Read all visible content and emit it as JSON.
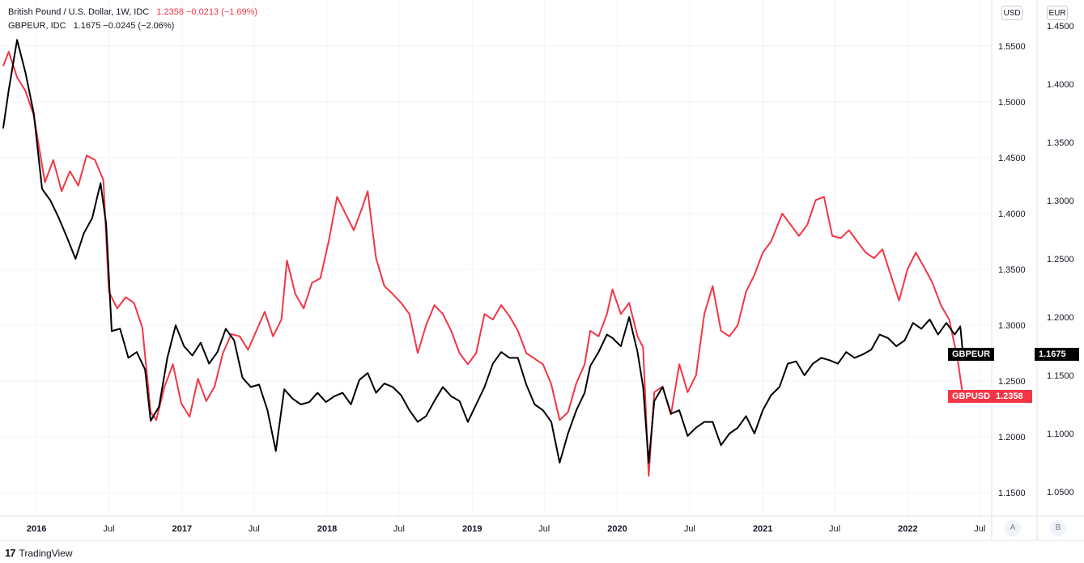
{
  "legend": {
    "line1_name": "British Pound / U.S. Dollar, 1W, IDC",
    "line1_values": "1.2358  −0.0213 (−1.69%)",
    "line2_name": "GBPEUR, IDC",
    "line2_values": "1.1675  −0.0245 (−2.06%)"
  },
  "axes": {
    "left_unit": "USD",
    "right_unit": "EUR",
    "scale_auto": "A",
    "scale_log": "B"
  },
  "footer": {
    "brand": "TradingView",
    "logo_glyph": "17"
  },
  "tags": {
    "gbpeur_label": "GBPEUR",
    "gbpeur_value": "1.1675",
    "gbpusd_label": "GBPUSD",
    "gbpusd_value": "1.2358"
  },
  "colors": {
    "gbpusd": "#f23645",
    "gbpeur": "#000000",
    "grid": "#f0f3fa"
  },
  "chart_data": {
    "type": "line",
    "x_tick_labels": [
      "2016",
      "Jul",
      "2017",
      "Jul",
      "2018",
      "Jul",
      "2019",
      "Jul",
      "2020",
      "Jul",
      "2021",
      "Jul",
      "2022",
      "Jul"
    ],
    "x_tick_dates": [
      "2016-01-01",
      "2016-07-01",
      "2017-01-01",
      "2017-07-01",
      "2018-01-01",
      "2018-07-01",
      "2019-01-01",
      "2019-07-01",
      "2020-01-01",
      "2020-07-01",
      "2021-01-01",
      "2021-07-01",
      "2022-01-01",
      "2022-07-01"
    ],
    "usd_axis": {
      "ticks": [
        1.55,
        1.5,
        1.45,
        1.4,
        1.35,
        1.3,
        1.25,
        1.2,
        1.15
      ]
    },
    "eur_axis": {
      "ticks": [
        1.45,
        1.4,
        1.35,
        1.3,
        1.25,
        1.2,
        1.15,
        1.1,
        1.05
      ]
    },
    "series": [
      {
        "name": "GBPUSD",
        "axis": "USD",
        "points": [
          [
            "2015-10-09",
            1.532
          ],
          [
            "2015-10-23",
            1.545
          ],
          [
            "2015-11-13",
            1.522
          ],
          [
            "2015-12-04",
            1.51
          ],
          [
            "2015-12-25",
            1.488
          ],
          [
            "2016-01-22",
            1.428
          ],
          [
            "2016-02-12",
            1.448
          ],
          [
            "2016-03-04",
            1.42
          ],
          [
            "2016-03-25",
            1.438
          ],
          [
            "2016-04-15",
            1.425
          ],
          [
            "2016-05-06",
            1.452
          ],
          [
            "2016-05-27",
            1.448
          ],
          [
            "2016-06-17",
            1.43
          ],
          [
            "2016-07-01",
            1.33
          ],
          [
            "2016-07-22",
            1.315
          ],
          [
            "2016-08-12",
            1.325
          ],
          [
            "2016-09-02",
            1.32
          ],
          [
            "2016-09-23",
            1.298
          ],
          [
            "2016-10-14",
            1.222
          ],
          [
            "2016-10-28",
            1.215
          ],
          [
            "2016-11-18",
            1.245
          ],
          [
            "2016-12-09",
            1.265
          ],
          [
            "2016-12-30",
            1.23
          ],
          [
            "2017-01-20",
            1.218
          ],
          [
            "2017-02-10",
            1.252
          ],
          [
            "2017-03-03",
            1.232
          ],
          [
            "2017-03-24",
            1.245
          ],
          [
            "2017-04-14",
            1.275
          ],
          [
            "2017-05-05",
            1.292
          ],
          [
            "2017-05-26",
            1.29
          ],
          [
            "2017-06-16",
            1.278
          ],
          [
            "2017-07-07",
            1.295
          ],
          [
            "2017-07-28",
            1.312
          ],
          [
            "2017-08-18",
            1.29
          ],
          [
            "2017-09-08",
            1.305
          ],
          [
            "2017-09-22",
            1.358
          ],
          [
            "2017-10-13",
            1.328
          ],
          [
            "2017-11-03",
            1.315
          ],
          [
            "2017-11-24",
            1.338
          ],
          [
            "2017-12-15",
            1.342
          ],
          [
            "2018-01-05",
            1.375
          ],
          [
            "2018-01-26",
            1.415
          ],
          [
            "2018-02-16",
            1.4
          ],
          [
            "2018-03-09",
            1.385
          ],
          [
            "2018-03-30",
            1.405
          ],
          [
            "2018-04-13",
            1.42
          ],
          [
            "2018-05-04",
            1.36
          ],
          [
            "2018-05-25",
            1.335
          ],
          [
            "2018-06-15",
            1.328
          ],
          [
            "2018-07-06",
            1.32
          ],
          [
            "2018-07-27",
            1.31
          ],
          [
            "2018-08-17",
            1.275
          ],
          [
            "2018-09-07",
            1.3
          ],
          [
            "2018-09-28",
            1.318
          ],
          [
            "2018-10-19",
            1.31
          ],
          [
            "2018-11-09",
            1.295
          ],
          [
            "2018-11-30",
            1.275
          ],
          [
            "2018-12-21",
            1.265
          ],
          [
            "2019-01-11",
            1.275
          ],
          [
            "2019-02-01",
            1.31
          ],
          [
            "2019-02-22",
            1.305
          ],
          [
            "2019-03-15",
            1.318
          ],
          [
            "2019-04-05",
            1.308
          ],
          [
            "2019-04-26",
            1.295
          ],
          [
            "2019-05-17",
            1.275
          ],
          [
            "2019-06-07",
            1.27
          ],
          [
            "2019-06-28",
            1.265
          ],
          [
            "2019-07-19",
            1.247
          ],
          [
            "2019-08-09",
            1.215
          ],
          [
            "2019-08-30",
            1.222
          ],
          [
            "2019-09-20",
            1.248
          ],
          [
            "2019-10-11",
            1.265
          ],
          [
            "2019-10-25",
            1.295
          ],
          [
            "2019-11-15",
            1.29
          ],
          [
            "2019-12-06",
            1.31
          ],
          [
            "2019-12-20",
            1.332
          ],
          [
            "2020-01-10",
            1.31
          ],
          [
            "2020-01-31",
            1.32
          ],
          [
            "2020-02-21",
            1.29
          ],
          [
            "2020-03-06",
            1.28
          ],
          [
            "2020-03-20",
            1.165
          ],
          [
            "2020-04-03",
            1.24
          ],
          [
            "2020-04-24",
            1.245
          ],
          [
            "2020-05-15",
            1.22
          ],
          [
            "2020-06-05",
            1.265
          ],
          [
            "2020-06-26",
            1.24
          ],
          [
            "2020-07-17",
            1.255
          ],
          [
            "2020-08-07",
            1.31
          ],
          [
            "2020-08-28",
            1.335
          ],
          [
            "2020-09-18",
            1.295
          ],
          [
            "2020-10-09",
            1.29
          ],
          [
            "2020-10-30",
            1.3
          ],
          [
            "2020-11-20",
            1.33
          ],
          [
            "2020-12-11",
            1.345
          ],
          [
            "2021-01-01",
            1.365
          ],
          [
            "2021-01-22",
            1.375
          ],
          [
            "2021-02-19",
            1.4
          ],
          [
            "2021-03-12",
            1.39
          ],
          [
            "2021-04-02",
            1.38
          ],
          [
            "2021-04-23",
            1.39
          ],
          [
            "2021-05-14",
            1.412
          ],
          [
            "2021-06-04",
            1.415
          ],
          [
            "2021-06-25",
            1.38
          ],
          [
            "2021-07-16",
            1.378
          ],
          [
            "2021-08-06",
            1.385
          ],
          [
            "2021-08-27",
            1.375
          ],
          [
            "2021-09-17",
            1.365
          ],
          [
            "2021-10-08",
            1.36
          ],
          [
            "2021-10-29",
            1.368
          ],
          [
            "2021-11-19",
            1.345
          ],
          [
            "2021-12-10",
            1.322
          ],
          [
            "2021-12-31",
            1.35
          ],
          [
            "2022-01-21",
            1.365
          ],
          [
            "2022-02-11",
            1.352
          ],
          [
            "2022-03-04",
            1.338
          ],
          [
            "2022-03-25",
            1.318
          ],
          [
            "2022-04-15",
            1.305
          ],
          [
            "2022-05-06",
            1.27
          ],
          [
            "2022-05-20",
            1.2358
          ]
        ]
      },
      {
        "name": "GBPEUR",
        "axis": "EUR",
        "points": [
          [
            "2015-10-09",
            1.362
          ],
          [
            "2015-10-23",
            1.395
          ],
          [
            "2015-11-13",
            1.438
          ],
          [
            "2015-12-04",
            1.41
          ],
          [
            "2015-12-25",
            1.375
          ],
          [
            "2016-01-15",
            1.31
          ],
          [
            "2016-02-05",
            1.3
          ],
          [
            "2016-02-26",
            1.285
          ],
          [
            "2016-03-18",
            1.268
          ],
          [
            "2016-04-08",
            1.25
          ],
          [
            "2016-04-29",
            1.272
          ],
          [
            "2016-05-20",
            1.285
          ],
          [
            "2016-06-10",
            1.315
          ],
          [
            "2016-06-24",
            1.28
          ],
          [
            "2016-07-08",
            1.188
          ],
          [
            "2016-07-29",
            1.19
          ],
          [
            "2016-08-19",
            1.165
          ],
          [
            "2016-09-09",
            1.17
          ],
          [
            "2016-09-30",
            1.155
          ],
          [
            "2016-10-14",
            1.111
          ],
          [
            "2016-11-04",
            1.123
          ],
          [
            "2016-11-25",
            1.165
          ],
          [
            "2016-12-16",
            1.193
          ],
          [
            "2017-01-06",
            1.175
          ],
          [
            "2017-01-27",
            1.167
          ],
          [
            "2017-02-17",
            1.178
          ],
          [
            "2017-03-10",
            1.16
          ],
          [
            "2017-03-31",
            1.17
          ],
          [
            "2017-04-21",
            1.19
          ],
          [
            "2017-05-12",
            1.18
          ],
          [
            "2017-06-02",
            1.148
          ],
          [
            "2017-06-23",
            1.14
          ],
          [
            "2017-07-14",
            1.142
          ],
          [
            "2017-08-04",
            1.12
          ],
          [
            "2017-08-25",
            1.085
          ],
          [
            "2017-09-15",
            1.138
          ],
          [
            "2017-10-06",
            1.13
          ],
          [
            "2017-10-27",
            1.125
          ],
          [
            "2017-11-17",
            1.127
          ],
          [
            "2017-12-08",
            1.135
          ],
          [
            "2017-12-29",
            1.127
          ],
          [
            "2018-01-19",
            1.132
          ],
          [
            "2018-02-09",
            1.135
          ],
          [
            "2018-03-02",
            1.125
          ],
          [
            "2018-03-23",
            1.146
          ],
          [
            "2018-04-13",
            1.152
          ],
          [
            "2018-05-04",
            1.135
          ],
          [
            "2018-05-25",
            1.143
          ],
          [
            "2018-06-15",
            1.14
          ],
          [
            "2018-07-06",
            1.133
          ],
          [
            "2018-07-27",
            1.12
          ],
          [
            "2018-08-17",
            1.11
          ],
          [
            "2018-09-07",
            1.115
          ],
          [
            "2018-09-28",
            1.128
          ],
          [
            "2018-10-19",
            1.14
          ],
          [
            "2018-11-09",
            1.132
          ],
          [
            "2018-11-30",
            1.128
          ],
          [
            "2018-12-21",
            1.11
          ],
          [
            "2019-01-11",
            1.125
          ],
          [
            "2019-02-01",
            1.14
          ],
          [
            "2019-02-22",
            1.16
          ],
          [
            "2019-03-15",
            1.17
          ],
          [
            "2019-04-05",
            1.165
          ],
          [
            "2019-04-26",
            1.165
          ],
          [
            "2019-05-17",
            1.142
          ],
          [
            "2019-06-07",
            1.125
          ],
          [
            "2019-06-28",
            1.12
          ],
          [
            "2019-07-19",
            1.11
          ],
          [
            "2019-08-09",
            1.075
          ],
          [
            "2019-08-30",
            1.1
          ],
          [
            "2019-09-20",
            1.12
          ],
          [
            "2019-10-11",
            1.135
          ],
          [
            "2019-10-25",
            1.158
          ],
          [
            "2019-11-15",
            1.17
          ],
          [
            "2019-12-06",
            1.185
          ],
          [
            "2019-12-20",
            1.182
          ],
          [
            "2020-01-10",
            1.175
          ],
          [
            "2020-01-31",
            1.2
          ],
          [
            "2020-02-21",
            1.17
          ],
          [
            "2020-03-06",
            1.14
          ],
          [
            "2020-03-20",
            1.075
          ],
          [
            "2020-04-03",
            1.128
          ],
          [
            "2020-04-24",
            1.14
          ],
          [
            "2020-05-15",
            1.117
          ],
          [
            "2020-06-05",
            1.12
          ],
          [
            "2020-06-26",
            1.098
          ],
          [
            "2020-07-17",
            1.105
          ],
          [
            "2020-08-07",
            1.11
          ],
          [
            "2020-08-28",
            1.11
          ],
          [
            "2020-09-18",
            1.09
          ],
          [
            "2020-10-09",
            1.1
          ],
          [
            "2020-10-30",
            1.105
          ],
          [
            "2020-11-20",
            1.115
          ],
          [
            "2020-12-11",
            1.1
          ],
          [
            "2021-01-01",
            1.12
          ],
          [
            "2021-01-22",
            1.133
          ],
          [
            "2021-02-12",
            1.14
          ],
          [
            "2021-03-05",
            1.16
          ],
          [
            "2021-03-26",
            1.162
          ],
          [
            "2021-04-16",
            1.15
          ],
          [
            "2021-05-07",
            1.16
          ],
          [
            "2021-05-28",
            1.165
          ],
          [
            "2021-06-18",
            1.163
          ],
          [
            "2021-07-09",
            1.16
          ],
          [
            "2021-07-30",
            1.17
          ],
          [
            "2021-08-20",
            1.165
          ],
          [
            "2021-09-10",
            1.168
          ],
          [
            "2021-10-01",
            1.172
          ],
          [
            "2021-10-22",
            1.185
          ],
          [
            "2021-11-12",
            1.182
          ],
          [
            "2021-12-03",
            1.175
          ],
          [
            "2021-12-24",
            1.18
          ],
          [
            "2022-01-14",
            1.195
          ],
          [
            "2022-02-04",
            1.19
          ],
          [
            "2022-02-25",
            1.198
          ],
          [
            "2022-03-18",
            1.185
          ],
          [
            "2022-04-08",
            1.195
          ],
          [
            "2022-04-29",
            1.185
          ],
          [
            "2022-05-13",
            1.192
          ],
          [
            "2022-05-20",
            1.1675
          ]
        ]
      }
    ]
  }
}
